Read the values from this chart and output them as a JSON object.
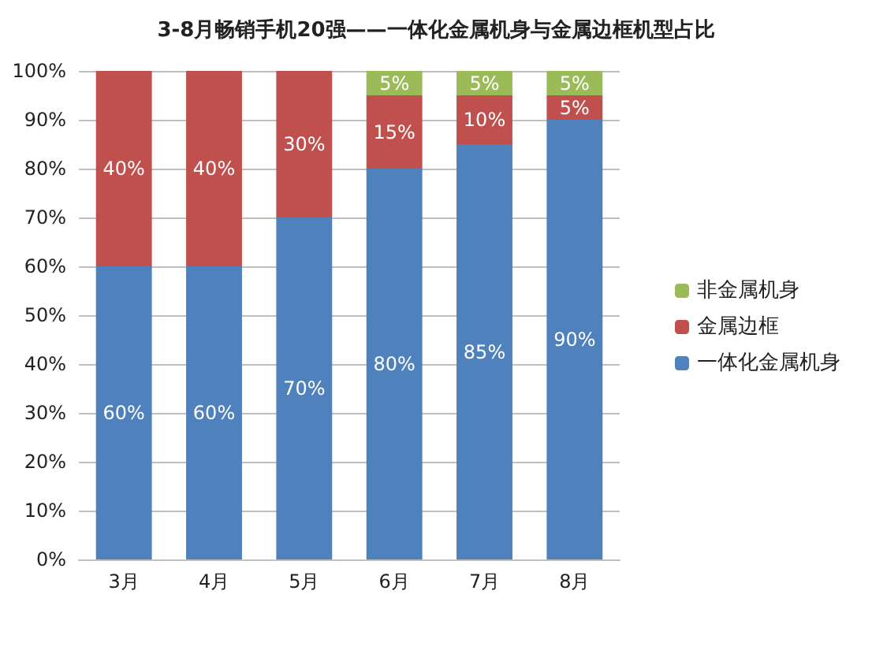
{
  "chart_data": {
    "type": "bar",
    "title": "3-8月畅销手机20强——一体化金属机身与金属边框机型占比",
    "categories": [
      "3月",
      "4月",
      "5月",
      "6月",
      "7月",
      "8月"
    ],
    "stacked": true,
    "series": [
      {
        "name": "一体化金属机身",
        "color": "#4f81bd",
        "values": [
          60,
          60,
          70,
          80,
          85,
          90
        ],
        "value_labels": [
          "60%",
          "60%",
          "70%",
          "80%",
          "85%",
          "90%"
        ]
      },
      {
        "name": "金属边框",
        "color": "#c0504d",
        "values": [
          40,
          40,
          30,
          15,
          10,
          5
        ],
        "value_labels": [
          "40%",
          "40%",
          "30%",
          "15%",
          "10%",
          "5%"
        ]
      },
      {
        "name": "非金属机身",
        "color": "#9bbb59",
        "values": [
          null,
          null,
          null,
          5,
          5,
          5
        ],
        "value_labels": [
          null,
          null,
          null,
          "5%",
          "5%",
          "5%"
        ]
      }
    ],
    "ylim": [
      0,
      100
    ],
    "yticks": [
      {
        "value": 0,
        "label": "0%"
      },
      {
        "value": 10,
        "label": "10%"
      },
      {
        "value": 20,
        "label": "20%"
      },
      {
        "value": 30,
        "label": "30%"
      },
      {
        "value": 40,
        "label": "40%"
      },
      {
        "value": 50,
        "label": "50%"
      },
      {
        "value": 60,
        "label": "60%"
      },
      {
        "value": 70,
        "label": "70%"
      },
      {
        "value": 80,
        "label": "80%"
      },
      {
        "value": 90,
        "label": "90%"
      },
      {
        "value": 100,
        "label": "100%"
      }
    ],
    "grid": "y",
    "legend": "right"
  }
}
